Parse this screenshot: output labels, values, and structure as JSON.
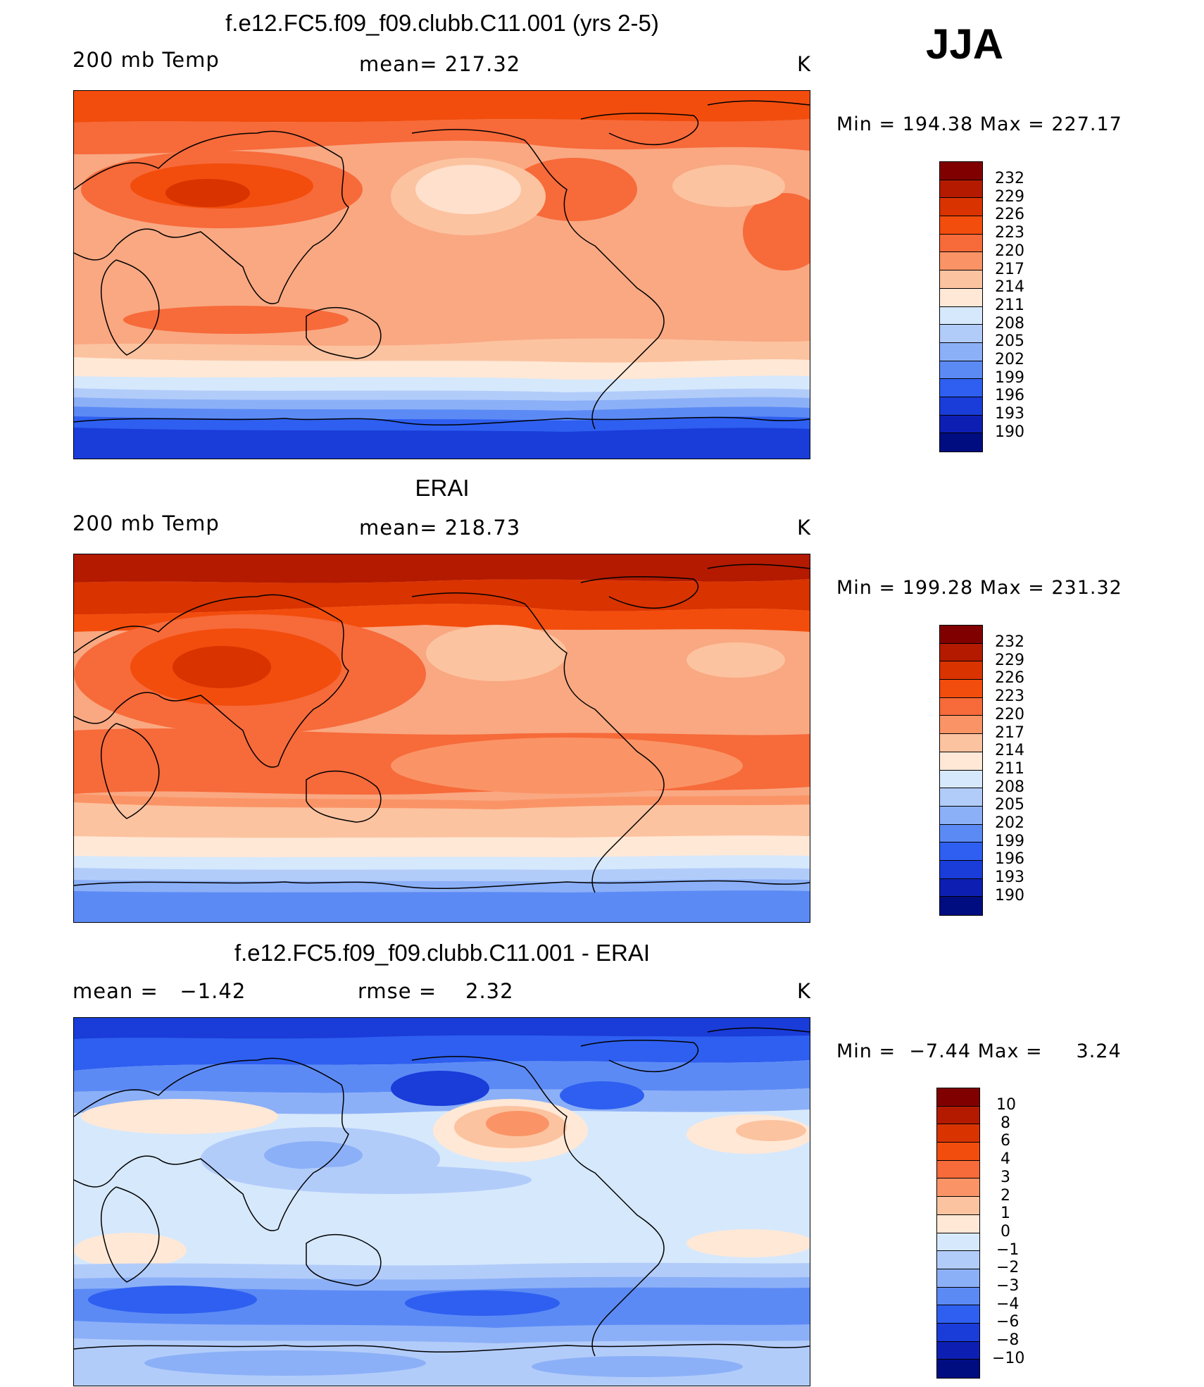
{
  "season": "JJA",
  "panels": [
    {
      "id": "model",
      "title": "f.e12.FC5.f09_f09.clubb.C11.001 (yrs 2-5)",
      "left_label": "200 mb Temp",
      "center_label": "mean= 217.32",
      "units": "K",
      "minmax": "Min = 194.38 Max = 227.17",
      "colorbar_labels": [
        "232",
        "229",
        "226",
        "223",
        "220",
        "217",
        "214",
        "211",
        "208",
        "205",
        "202",
        "199",
        "196",
        "193",
        "190"
      ]
    },
    {
      "id": "obs",
      "title": "ERAI",
      "left_label": "200 mb Temp",
      "center_label": "mean= 218.73",
      "units": "K",
      "minmax": "Min = 199.28 Max = 231.32",
      "colorbar_labels": [
        "232",
        "229",
        "226",
        "223",
        "220",
        "217",
        "214",
        "211",
        "208",
        "205",
        "202",
        "199",
        "196",
        "193",
        "190"
      ]
    },
    {
      "id": "diff",
      "title": "f.e12.FC5.f09_f09.clubb.C11.001 - ERAI",
      "left_label": "mean =   −1.42",
      "center_label": "rmse =    2.32",
      "units": "K",
      "minmax": "Min =  −7.44 Max =     3.24",
      "colorbar_labels": [
        "10",
        "8",
        "6",
        "4",
        "3",
        "2",
        "1",
        "0",
        "−1",
        "−2",
        "−3",
        "−4",
        "−6",
        "−8",
        "−10"
      ]
    }
  ],
  "colors": {
    "full_field_scale": [
      "#800000",
      "#B31A00",
      "#D93300",
      "#F24D0D",
      "#F76A3A",
      "#FA9466",
      "#FCC3A0",
      "#FFE8D6",
      "#D6E8FC",
      "#B2CCFA",
      "#8CB0F7",
      "#5C8AF5",
      "#2E5FF0",
      "#1A3CD9",
      "#0D1FB3",
      "#000D80"
    ],
    "diff_scale": [
      "#800000",
      "#B31A00",
      "#D93300",
      "#F24D0D",
      "#F76A3A",
      "#FA9466",
      "#FCC3A0",
      "#FFE8D6",
      "#D6E8FC",
      "#B2CCFA",
      "#8CB0F7",
      "#5C8AF5",
      "#2E5FF0",
      "#1A3CD9",
      "#0D1FB3",
      "#000D80"
    ]
  }
}
